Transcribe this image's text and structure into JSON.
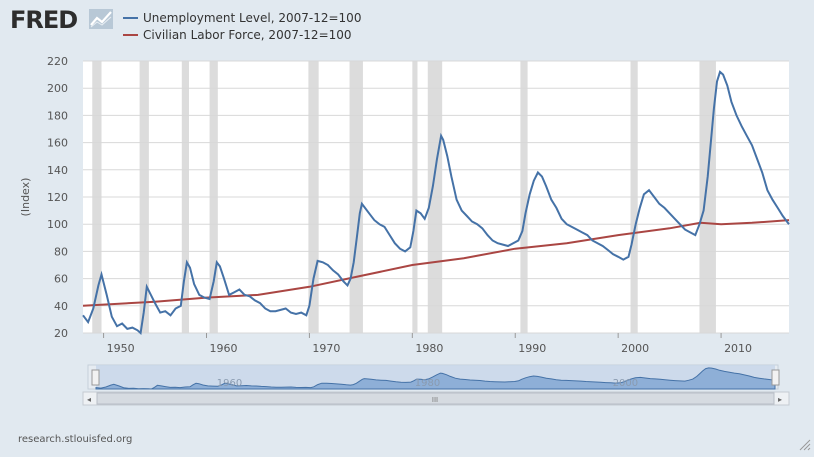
{
  "logo": {
    "text": "FRED",
    "icon": "line-chart-icon"
  },
  "source_text": "research.stlouisfed.org",
  "colors": {
    "unemployment": "#4572a7",
    "labor_force": "#aa4643",
    "recession": "#dcdcdc",
    "background": "#e1e9f0"
  },
  "navigator": {
    "ticks": [
      "1960",
      "1980",
      "2000"
    ],
    "scroll_grip": "III"
  },
  "chart_data": {
    "type": "line",
    "ylabel": "(Index)",
    "ylim": [
      20,
      220
    ],
    "xlim": [
      1948.0,
      2016.6
    ],
    "yticks": [
      "220",
      "200",
      "180",
      "160",
      "140",
      "120",
      "100",
      "80",
      "60",
      "40",
      "20"
    ],
    "xticks": [
      "1950",
      "1960",
      "1970",
      "1980",
      "1990",
      "2000",
      "2010"
    ],
    "grid": "horizontal",
    "legend_position": "top-left",
    "recessions": [
      [
        1948.9,
        1949.8
      ],
      [
        1953.5,
        1954.4
      ],
      [
        1957.6,
        1958.3
      ],
      [
        1960.3,
        1961.1
      ],
      [
        1969.9,
        1970.9
      ],
      [
        1973.9,
        1975.2
      ],
      [
        1980.0,
        1980.5
      ],
      [
        1981.5,
        1982.9
      ],
      [
        1990.5,
        1991.2
      ],
      [
        2001.2,
        2001.9
      ],
      [
        2007.9,
        2009.5
      ]
    ],
    "series": [
      {
        "name": "Unemployment Level, 2007-12=100",
        "x": [
          1948.0,
          1948.5,
          1949.0,
          1949.5,
          1949.8,
          1950.3,
          1950.8,
          1951.3,
          1951.8,
          1952.3,
          1952.8,
          1953.3,
          1953.6,
          1953.9,
          1954.2,
          1954.6,
          1955.0,
          1955.5,
          1956.0,
          1956.5,
          1957.0,
          1957.5,
          1957.8,
          1958.1,
          1958.4,
          1958.8,
          1959.3,
          1959.8,
          1960.3,
          1960.7,
          1961.0,
          1961.3,
          1961.7,
          1962.2,
          1962.7,
          1963.2,
          1963.7,
          1964.2,
          1964.7,
          1965.2,
          1965.7,
          1966.2,
          1966.7,
          1967.2,
          1967.7,
          1968.2,
          1968.7,
          1969.2,
          1969.7,
          1970.0,
          1970.4,
          1970.8,
          1971.3,
          1971.8,
          1972.3,
          1972.8,
          1973.3,
          1973.7,
          1974.0,
          1974.3,
          1974.6,
          1974.9,
          1975.1,
          1975.4,
          1975.8,
          1976.3,
          1976.8,
          1977.3,
          1977.8,
          1978.3,
          1978.8,
          1979.3,
          1979.8,
          1980.1,
          1980.4,
          1980.8,
          1981.2,
          1981.6,
          1982.0,
          1982.4,
          1982.8,
          1983.0,
          1983.4,
          1983.8,
          1984.3,
          1984.8,
          1985.3,
          1985.8,
          1986.3,
          1986.8,
          1987.3,
          1987.8,
          1988.3,
          1988.8,
          1989.3,
          1989.8,
          1990.3,
          1990.7,
          1991.0,
          1991.4,
          1991.8,
          1992.2,
          1992.6,
          1993.0,
          1993.5,
          1994.0,
          1994.5,
          1995.0,
          1995.5,
          1996.0,
          1996.5,
          1997.0,
          1997.5,
          1998.0,
          1998.5,
          1999.0,
          1999.5,
          2000.0,
          2000.5,
          2001.0,
          2001.3,
          2001.7,
          2002.1,
          2002.5,
          2003.0,
          2003.5,
          2004.0,
          2004.5,
          2005.0,
          2005.5,
          2006.0,
          2006.5,
          2007.0,
          2007.5,
          2007.9,
          2008.3,
          2008.7,
          2009.0,
          2009.3,
          2009.6,
          2009.9,
          2010.2,
          2010.6,
          2011.0,
          2011.5,
          2012.0,
          2012.5,
          2013.0,
          2013.5,
          2014.0,
          2014.5,
          2015.0,
          2015.5,
          2016.0,
          2016.4,
          2016.6
        ],
        "values": [
          33,
          28,
          38,
          55,
          63,
          48,
          32,
          25,
          27,
          23,
          24,
          22,
          20,
          35,
          54,
          48,
          42,
          35,
          36,
          33,
          38,
          40,
          58,
          72,
          68,
          56,
          48,
          46,
          45,
          58,
          72,
          69,
          60,
          48,
          50,
          52,
          48,
          47,
          44,
          42,
          38,
          36,
          36,
          37,
          38,
          35,
          34,
          35,
          33,
          40,
          60,
          73,
          72,
          70,
          66,
          63,
          58,
          55,
          60,
          72,
          90,
          108,
          115,
          112,
          108,
          103,
          100,
          98,
          92,
          86,
          82,
          80,
          83,
          95,
          110,
          108,
          104,
          112,
          128,
          148,
          165,
          162,
          150,
          135,
          118,
          110,
          106,
          102,
          100,
          97,
          92,
          88,
          86,
          85,
          84,
          86,
          88,
          95,
          108,
          122,
          132,
          138,
          135,
          128,
          118,
          112,
          104,
          100,
          98,
          96,
          94,
          92,
          88,
          86,
          84,
          81,
          78,
          76,
          74,
          76,
          85,
          100,
          112,
          122,
          125,
          120,
          115,
          112,
          108,
          104,
          100,
          96,
          94,
          92,
          100,
          110,
          135,
          160,
          185,
          205,
          212,
          210,
          202,
          190,
          180,
          172,
          165,
          158,
          148,
          138,
          125,
          118,
          112,
          106,
          102,
          100
        ]
      },
      {
        "name": "Civilian Labor Force, 2007-12=100",
        "x": [
          1948.0,
          1955.0,
          1960.0,
          1965.0,
          1970.0,
          1975.0,
          1980.0,
          1985.0,
          1990.0,
          1995.0,
          2000.0,
          2005.0,
          2008.0,
          2010.0,
          2013.0,
          2016.6
        ],
        "values": [
          40,
          43,
          46,
          48,
          54,
          62,
          70,
          75,
          82,
          86,
          92,
          97,
          101,
          100,
          101,
          103
        ]
      }
    ]
  }
}
